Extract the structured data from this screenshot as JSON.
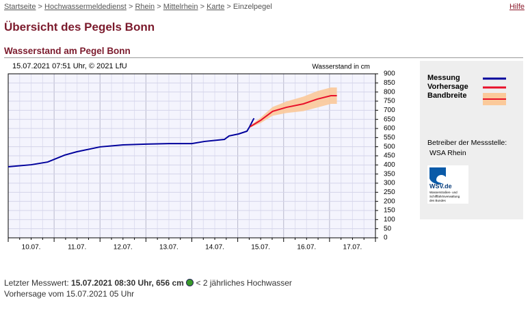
{
  "nav": {
    "breadcrumb": [
      "Startseite",
      "Hochwassermeldedienst",
      "Rhein",
      "Mittelrhein",
      "Karte"
    ],
    "current": "Einzelpegel",
    "separator": ">",
    "help": "Hilfe"
  },
  "header": {
    "title": "Übersicht des Pegels Bonn",
    "subtitle": "Wasserstand am Pegel Bonn"
  },
  "chart_data": {
    "type": "line",
    "timestamp": "15.07.2021 07:51 Uhr, © 2021 LfU",
    "ylabel": "Wasserstand in cm",
    "xlim": [
      0,
      8
    ],
    "xticks": [
      {
        "value": 0.5,
        "label": "10.07."
      },
      {
        "value": 1.5,
        "label": "11.07."
      },
      {
        "value": 2.5,
        "label": "12.07."
      },
      {
        "value": 3.5,
        "label": "13.07."
      },
      {
        "value": 4.5,
        "label": "14.07."
      },
      {
        "value": 5.5,
        "label": "15.07."
      },
      {
        "value": 6.5,
        "label": "16.07."
      },
      {
        "value": 7.5,
        "label": "17.07."
      }
    ],
    "ylim": [
      0,
      900
    ],
    "yticks": [
      0,
      50,
      100,
      150,
      200,
      250,
      300,
      350,
      400,
      450,
      500,
      550,
      600,
      650,
      700,
      750,
      800,
      850,
      900
    ],
    "grid": true,
    "series": [
      {
        "name": "Messung",
        "color": "#00009c",
        "x": [
          0,
          0.5,
          0.86,
          1.23,
          1.49,
          2.0,
          2.5,
          3.0,
          3.5,
          4.0,
          4.28,
          4.71,
          4.81,
          5.02,
          5.2,
          5.26,
          5.32,
          5.354
        ],
        "values": [
          390,
          401,
          416,
          454,
          472,
          499,
          510,
          514,
          517,
          517,
          529,
          540,
          559,
          570,
          585,
          610,
          640,
          656
        ]
      },
      {
        "name": "Vorhersage",
        "color": "#e8102a",
        "x": [
          5.27,
          5.5,
          5.76,
          6.06,
          6.43,
          6.73,
          7.03,
          7.16
        ],
        "values": [
          610,
          645,
          694,
          716,
          735,
          761,
          780,
          780
        ]
      },
      {
        "name": "Bandbreite",
        "color": "#fbc99a",
        "x": [
          5.27,
          5.5,
          5.76,
          6.06,
          6.43,
          6.73,
          7.03,
          7.16
        ],
        "low": [
          605,
          630,
          670,
          685,
          695,
          715,
          735,
          735
        ],
        "high": [
          615,
          660,
          718,
          748,
          775,
          805,
          825,
          825
        ]
      }
    ]
  },
  "sidebar": {
    "operator_label": "Betreiber der Messstelle:",
    "operator": "WSA Rhein",
    "logo": {
      "name": "WSV.de",
      "lines": [
        "Wasserstraßen- und",
        "Schifffahrtsverwaltung",
        "des Bundes"
      ]
    }
  },
  "footer": {
    "last_label": "Letzter Messwert:",
    "last_value": "15.07.2021 08:30 Uhr, 656 cm",
    "status": "< 2 jährliches Hochwasser",
    "forecast": "Vorhersage vom 15.07.2021 05 Uhr"
  }
}
